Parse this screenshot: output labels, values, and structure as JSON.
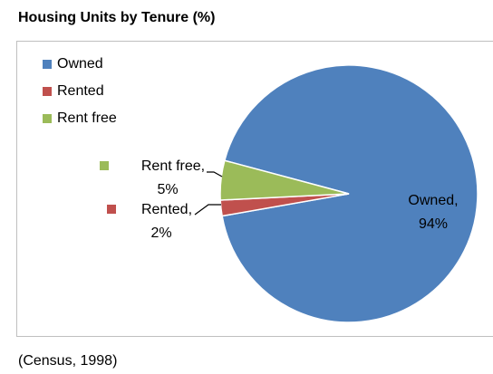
{
  "chart_data": {
    "type": "pie",
    "title": "Housing Units by Tenure (%)",
    "categories": [
      "Owned",
      "Rented",
      "Rent free"
    ],
    "values": [
      94,
      2,
      5
    ],
    "value_labels": [
      "Owned, 94%",
      "Rented, 2%",
      "Rent free, 5%"
    ],
    "colors": [
      "#4f81bd",
      "#c0504d",
      "#9bbb59"
    ],
    "legend": "top-left",
    "note": "(Census, 1998)"
  }
}
